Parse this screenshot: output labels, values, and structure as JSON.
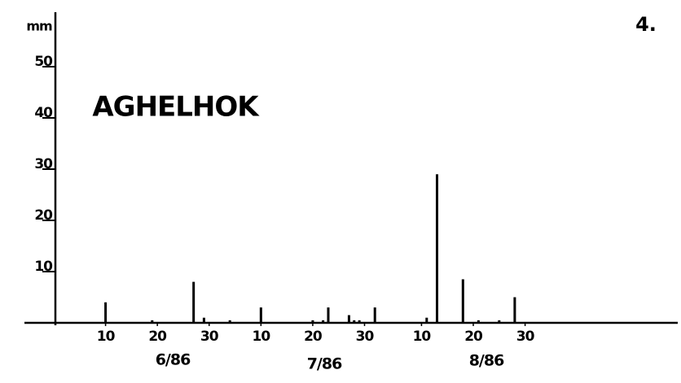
{
  "chart_data": {
    "type": "bar",
    "title": "AGHELHOK",
    "figure_number": "4.",
    "y_label": "mm",
    "month_labels": [
      "6/86",
      "7/86",
      "8/86"
    ],
    "x": [
      10,
      19,
      27,
      29,
      34,
      40,
      50,
      52,
      53,
      57,
      58,
      59,
      62,
      72,
      74,
      79,
      82,
      86,
      89
    ],
    "values": [
      4,
      0.5,
      8,
      1,
      0.5,
      3,
      0.5,
      0.5,
      3,
      1.5,
      0.5,
      0.5,
      3,
      1,
      29,
      8.5,
      0.5,
      0.5,
      5
    ],
    "color": "#000000",
    "xlim": [
      0,
      120
    ],
    "xticks": [
      10,
      20,
      30,
      {
        "value": 40,
        "label": "10"
      },
      {
        "value": 50,
        "label": "20"
      },
      {
        "value": 60,
        "label": "30"
      },
      {
        "value": 71,
        "label": "10"
      },
      {
        "value": 81,
        "label": "20"
      },
      {
        "value": 91,
        "label": "30"
      }
    ],
    "ylim": [
      0,
      60
    ],
    "yticks": [
      10,
      20,
      30,
      40,
      50
    ],
    "grid": false
  }
}
